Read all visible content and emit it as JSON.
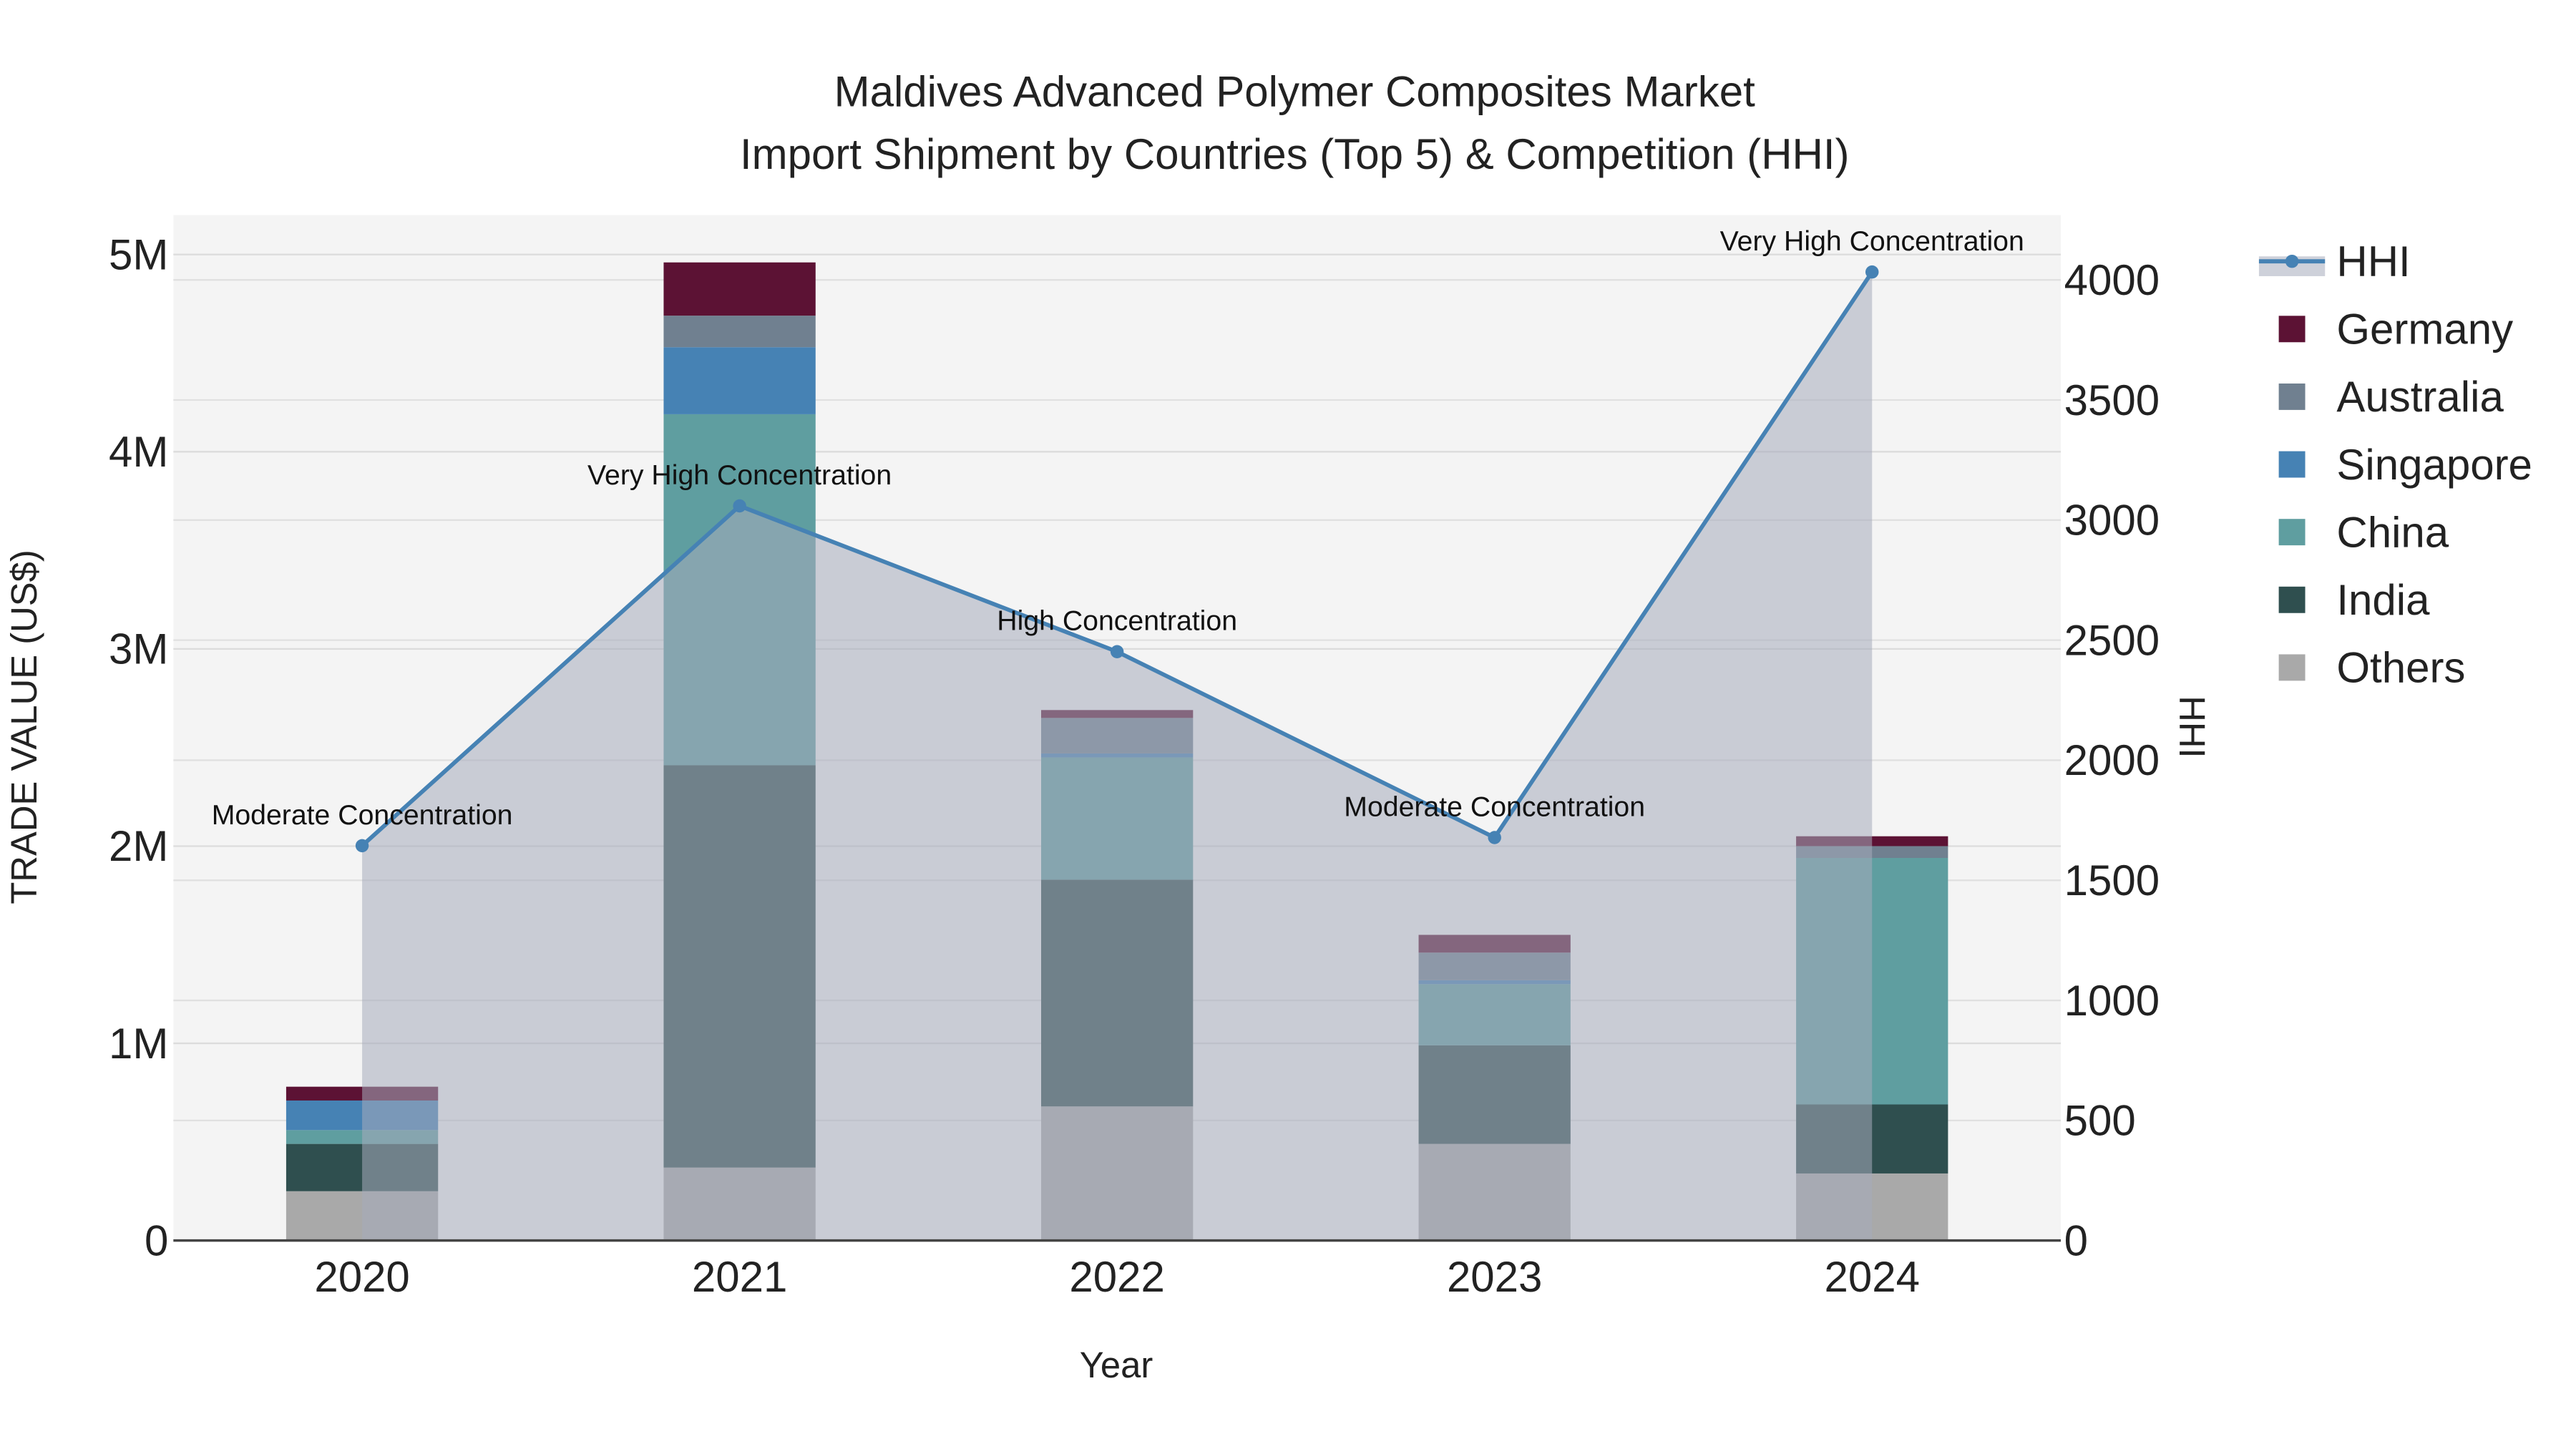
{
  "chart_data": {
    "type": "bar",
    "title_line1": "Maldives Advanced Polymer Composites Market",
    "title_line2": "Import Shipment by Countries (Top 5) & Competition (HHI)",
    "xlabel": "Year",
    "ylabel": "TRADE VALUE (US$)",
    "y2label": "HHI",
    "categories": [
      "2020",
      "2021",
      "2022",
      "2023",
      "2024"
    ],
    "ylim": [
      0,
      5200000
    ],
    "y2lim": [
      0,
      4270
    ],
    "yticks": [
      0,
      1000000,
      2000000,
      3000000,
      4000000,
      5000000
    ],
    "ytick_labels": [
      "0",
      "1M",
      "2M",
      "3M",
      "4M",
      "5M"
    ],
    "y2ticks": [
      0,
      500,
      1000,
      1500,
      2000,
      2500,
      3000,
      3500,
      4000
    ],
    "y2tick_labels": [
      "0",
      "500",
      "1000",
      "1500",
      "2000",
      "2500",
      "3000",
      "3500",
      "4000"
    ],
    "grid": true,
    "legend_position": "right",
    "series": [
      {
        "name": "Others",
        "color": "#a9a9a9",
        "values": [
          250000,
          370000,
          680000,
          490000,
          340000
        ]
      },
      {
        "name": "India",
        "color": "#2f4f4f",
        "values": [
          240000,
          2040000,
          1150000,
          500000,
          350000
        ]
      },
      {
        "name": "China",
        "color": "#5f9ea0",
        "values": [
          70000,
          1780000,
          620000,
          310000,
          1250000
        ]
      },
      {
        "name": "Singapore",
        "color": "#4682b4",
        "values": [
          150000,
          340000,
          20000,
          20000,
          0
        ]
      },
      {
        "name": "Australia",
        "color": "#708090",
        "values": [
          0,
          160000,
          180000,
          140000,
          60000
        ]
      },
      {
        "name": "Germany",
        "color": "#5c1234",
        "values": [
          70000,
          270000,
          40000,
          90000,
          50000
        ]
      }
    ],
    "hhi": {
      "name": "HHI",
      "color": "#4682b4",
      "values": [
        1644,
        3059,
        2452,
        1678,
        4033
      ],
      "annotations": [
        "Moderate Concentration",
        "Very High Concentration",
        "High Concentration",
        "Moderate Concentration",
        "Very High Concentration"
      ]
    },
    "legend_order": [
      "HHI",
      "Germany",
      "Australia",
      "Singapore",
      "China",
      "India",
      "Others"
    ]
  }
}
